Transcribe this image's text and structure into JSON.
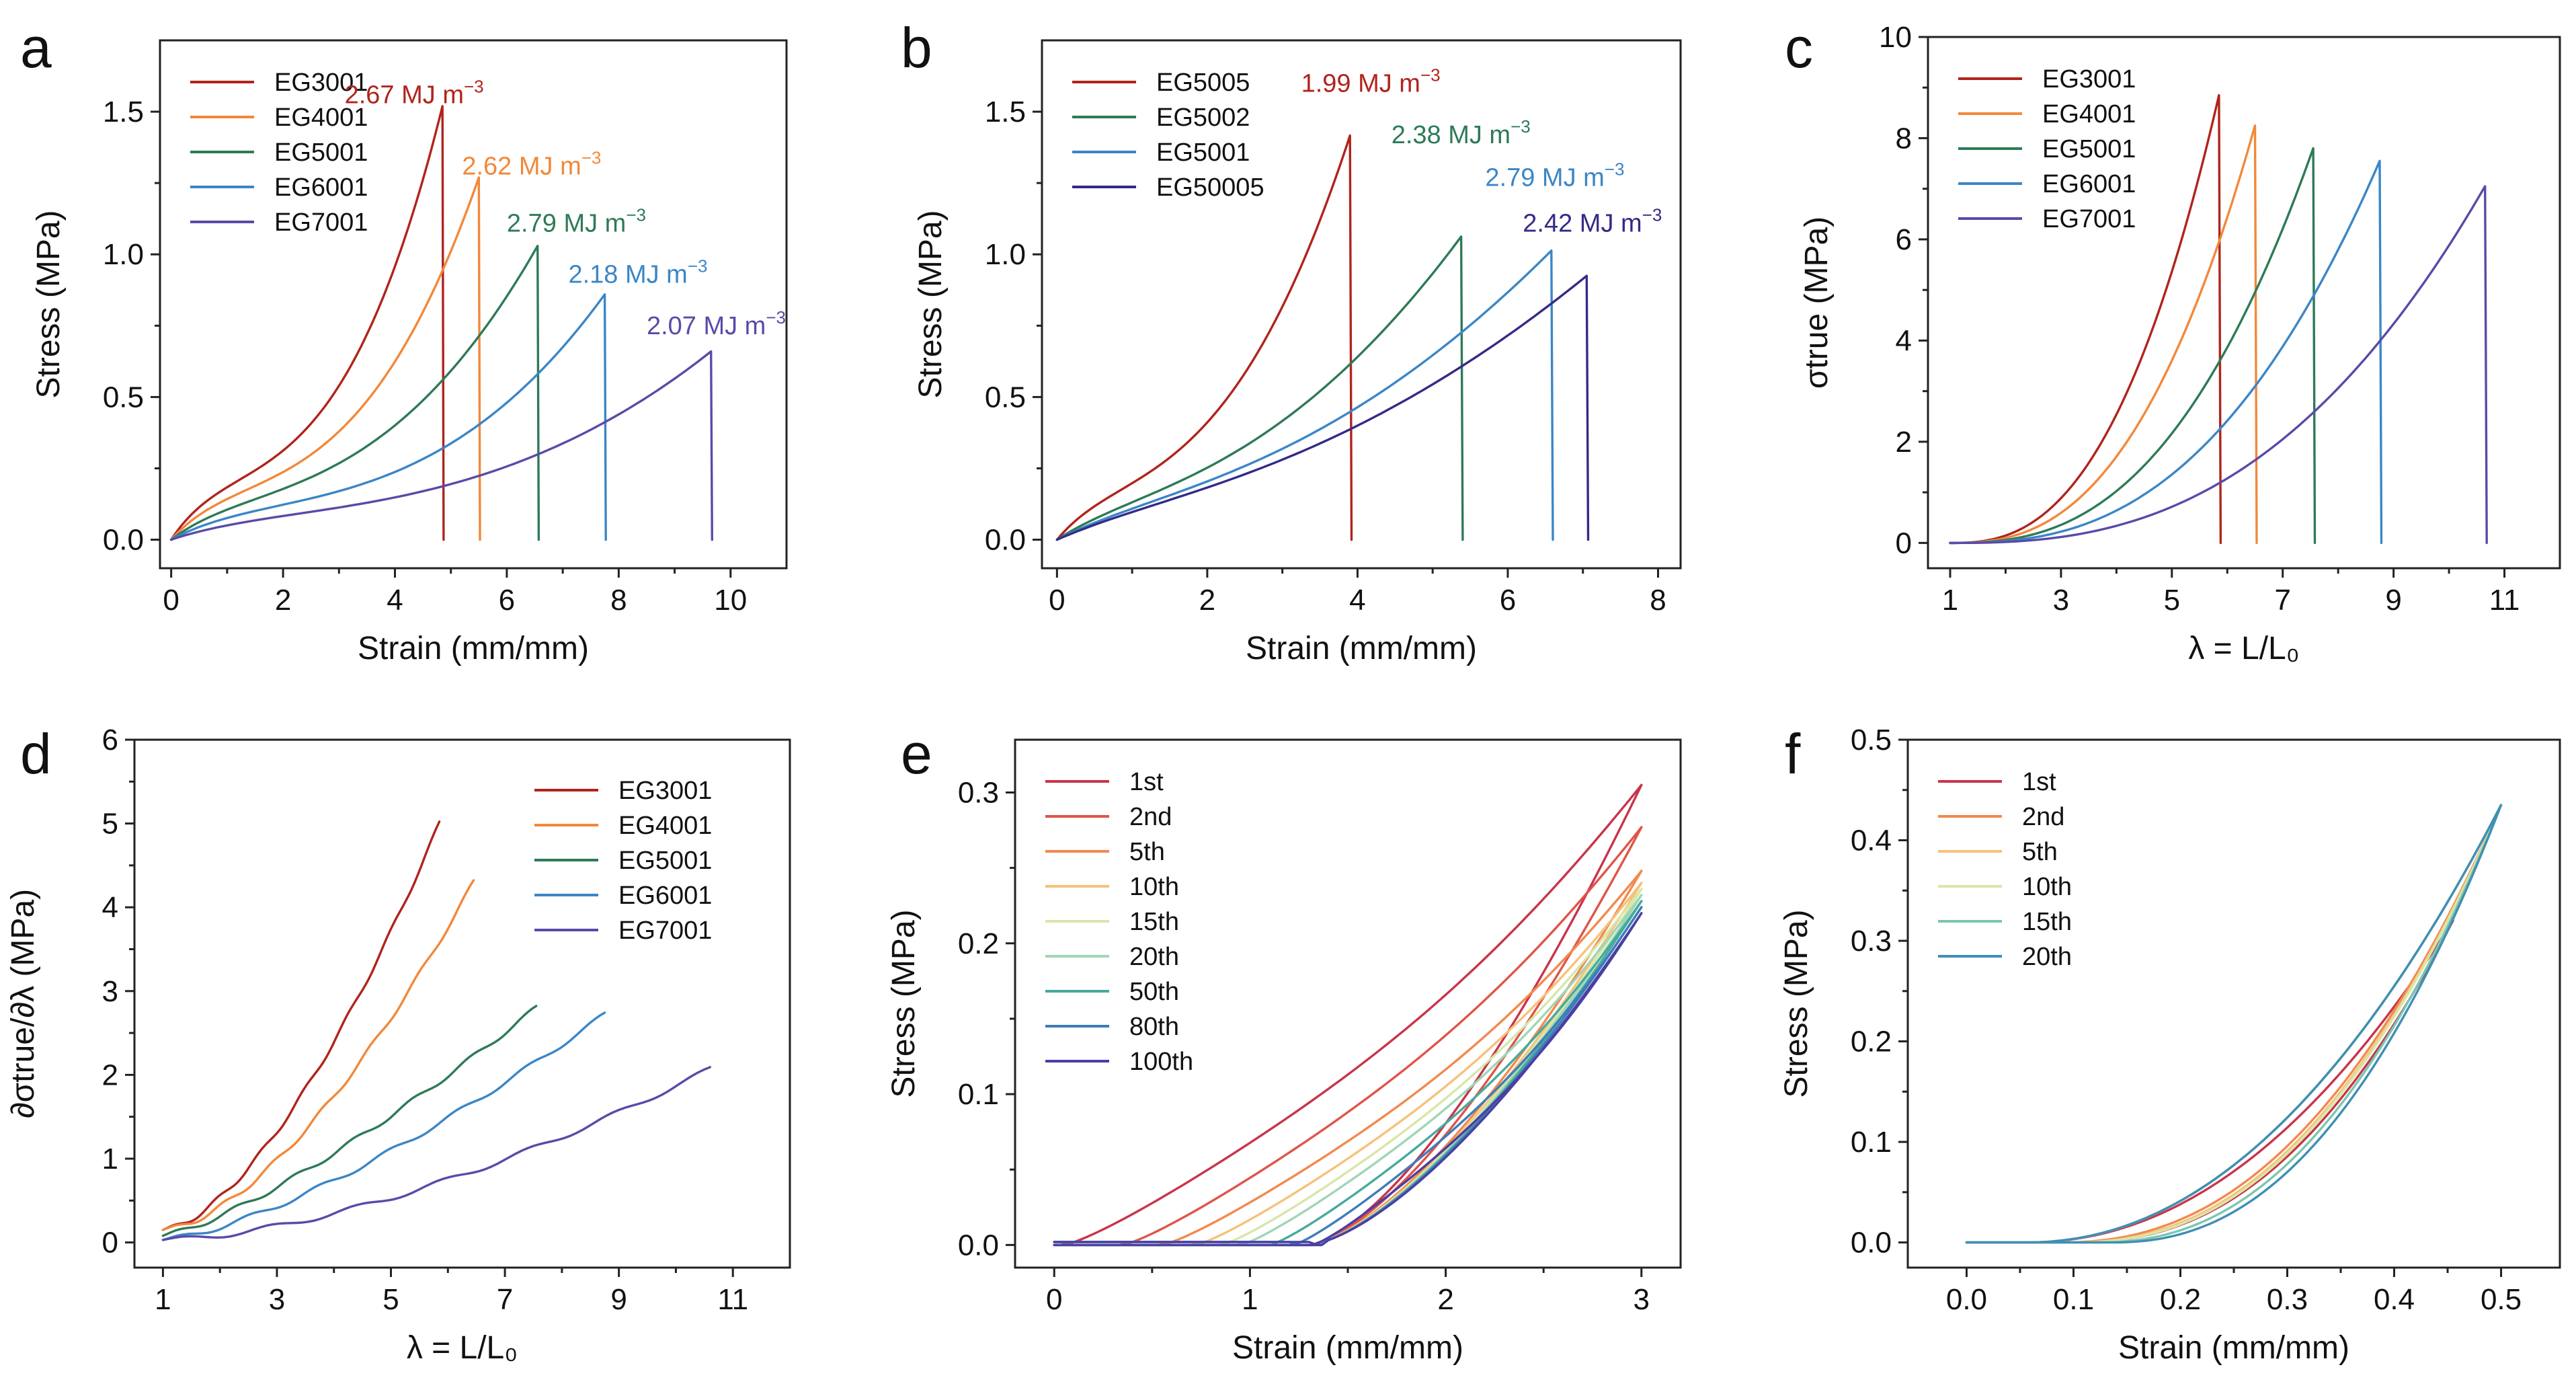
{
  "figure": {
    "panels": [
      "a",
      "b",
      "c",
      "d",
      "e",
      "f"
    ]
  },
  "chart_data": [
    {
      "type": "line",
      "panel": "a",
      "title": "",
      "xlabel": "Strain (mm/mm)",
      "ylabel": "Stress (MPa)",
      "xlim": [
        -0.2,
        11
      ],
      "ylim": [
        -0.1,
        1.75
      ],
      "xticks": [
        0,
        2,
        4,
        6,
        8,
        10
      ],
      "xtick_labels": [
        "0",
        "2",
        "4",
        "6",
        "8",
        "10"
      ],
      "yticks": [
        0.0,
        0.5,
        1.0,
        1.5
      ],
      "ytick_labels": [
        "0.0",
        "0.5",
        "1.0",
        "1.5"
      ],
      "legend_position": "top-left",
      "series": [
        {
          "name": "EG3001",
          "color": "#b0241c",
          "break_x": 4.85,
          "peak": 1.52,
          "k": 2.6,
          "annotation": "2.67 MJ m",
          "sup": "−3",
          "annot_at": [
            3.1,
            1.53
          ]
        },
        {
          "name": "EG4001",
          "color": "#f2883a",
          "break_x": 5.5,
          "peak": 1.27,
          "k": 2.5,
          "annotation": "2.62 MJ m",
          "sup": "−3",
          "annot_at": [
            5.2,
            1.28
          ]
        },
        {
          "name": "EG5001",
          "color": "#2e7a57",
          "break_x": 6.55,
          "peak": 1.03,
          "k": 2.2,
          "annotation": "2.79 MJ m",
          "sup": "−3",
          "annot_at": [
            6.0,
            1.08
          ]
        },
        {
          "name": "EG6001",
          "color": "#3b86c6",
          "break_x": 7.75,
          "peak": 0.86,
          "k": 2.5,
          "annotation": "2.18 MJ m",
          "sup": "−3",
          "annot_at": [
            7.1,
            0.9
          ]
        },
        {
          "name": "EG7001",
          "color": "#5a4aa8",
          "break_x": 9.65,
          "peak": 0.66,
          "k": 2.3,
          "annotation": "2.07 MJ m",
          "sup": "−3",
          "annot_at": [
            8.5,
            0.72
          ]
        }
      ]
    },
    {
      "type": "line",
      "panel": "b",
      "title": "",
      "xlabel": "Strain (mm/mm)",
      "ylabel": "Stress (MPa)",
      "xlim": [
        -0.2,
        8.3
      ],
      "ylim": [
        -0.1,
        1.75
      ],
      "xticks": [
        0,
        2,
        4,
        6,
        8
      ],
      "xtick_labels": [
        "0",
        "2",
        "4",
        "6",
        "8"
      ],
      "yticks": [
        0.0,
        0.5,
        1.0,
        1.5
      ],
      "ytick_labels": [
        "0.0",
        "0.5",
        "1.0",
        "1.5"
      ],
      "legend_position": "top-left",
      "series": [
        {
          "name": "EG5005",
          "color": "#b0241c",
          "break_x": 3.9,
          "peak": 1.44,
          "k": 2.2,
          "annotation": "1.99 MJ m",
          "sup": "−3",
          "annot_at": [
            3.25,
            1.57
          ]
        },
        {
          "name": "EG5002",
          "color": "#2e7a57",
          "break_x": 5.38,
          "peak": 1.08,
          "k": 1.7,
          "annotation": "2.38 MJ m",
          "sup": "−3",
          "annot_at": [
            4.45,
            1.39
          ]
        },
        {
          "name": "EG5001",
          "color": "#3b86c6",
          "break_x": 6.58,
          "peak": 1.03,
          "k": 1.6,
          "annotation": "2.79 MJ m",
          "sup": "−3",
          "annot_at": [
            5.7,
            1.24
          ]
        },
        {
          "name": "EG50005",
          "color": "#332b86",
          "break_x": 7.05,
          "peak": 0.94,
          "k": 1.5,
          "annotation": "2.42 MJ m",
          "sup": "−3",
          "annot_at": [
            6.2,
            1.08
          ]
        }
      ]
    },
    {
      "type": "line",
      "panel": "c",
      "title": "",
      "xlabel": "λ = L/L₀",
      "ylabel": "σtrue (MPa)",
      "xlim": [
        0.6,
        12.0
      ],
      "ylim": [
        -0.5,
        10
      ],
      "xticks": [
        1,
        3,
        5,
        7,
        9,
        11
      ],
      "xtick_labels": [
        "1",
        "3",
        "5",
        "7",
        "9",
        "11"
      ],
      "yticks": [
        0,
        2,
        4,
        6,
        8,
        10
      ],
      "ytick_labels": [
        "0",
        "2",
        "4",
        "6",
        "8",
        "10"
      ],
      "legend_position": "top-left",
      "series": [
        {
          "name": "EG3001",
          "color": "#b0241c",
          "break_x": 5.85,
          "peak": 8.85,
          "k": 2.6
        },
        {
          "name": "EG4001",
          "color": "#f2883a",
          "break_x": 6.5,
          "peak": 8.25,
          "k": 2.6
        },
        {
          "name": "EG5001",
          "color": "#2e7a57",
          "break_x": 7.55,
          "peak": 7.8,
          "k": 2.6
        },
        {
          "name": "EG6001",
          "color": "#3b86c6",
          "break_x": 8.75,
          "peak": 7.55,
          "k": 2.6
        },
        {
          "name": "EG7001",
          "color": "#5a4aa8",
          "break_x": 10.65,
          "peak": 7.05,
          "k": 2.6
        }
      ]
    },
    {
      "type": "line",
      "panel": "d",
      "title": "",
      "xlabel": "λ = L/L₀",
      "ylabel": "∂σtrue/∂λ (MPa)",
      "xlim": [
        0.5,
        12.0
      ],
      "ylim": [
        -0.3,
        6
      ],
      "xticks": [
        1,
        3,
        5,
        7,
        9,
        11
      ],
      "xtick_labels": [
        "1",
        "3",
        "5",
        "7",
        "9",
        "11"
      ],
      "yticks": [
        0,
        1,
        2,
        3,
        4,
        5,
        6
      ],
      "ytick_labels": [
        "0",
        "1",
        "2",
        "3",
        "4",
        "5",
        "6"
      ],
      "legend_position": "top-right",
      "series": [
        {
          "name": "EG3001",
          "color": "#b0241c",
          "end_x": 5.85,
          "end_y": 5.0,
          "start_y": 0.15,
          "k": 1.6
        },
        {
          "name": "EG4001",
          "color": "#f2883a",
          "end_x": 6.45,
          "end_y": 4.3,
          "start_y": 0.15,
          "k": 1.6
        },
        {
          "name": "EG5001",
          "color": "#2e7a57",
          "end_x": 7.55,
          "end_y": 2.8,
          "start_y": 0.08,
          "k": 1.3
        },
        {
          "name": "EG6001",
          "color": "#3b86c6",
          "end_x": 8.75,
          "end_y": 2.72,
          "start_y": 0.03,
          "k": 1.4
        },
        {
          "name": "EG7001",
          "color": "#5a4aa8",
          "end_x": 10.6,
          "end_y": 2.07,
          "start_y": 0.03,
          "k": 1.6
        }
      ]
    },
    {
      "type": "line",
      "panel": "e",
      "title": "",
      "xlabel": "Strain (mm/mm)",
      "ylabel": "Stress (MPa)",
      "xlim": [
        -0.2,
        3.2
      ],
      "ylim": [
        -0.015,
        0.335
      ],
      "xticks": [
        0,
        1,
        2,
        3
      ],
      "xtick_labels": [
        "0",
        "1",
        "2",
        "3"
      ],
      "yticks": [
        0.0,
        0.1,
        0.2,
        0.3
      ],
      "ytick_labels": [
        "0.0",
        "0.1",
        "0.2",
        "0.3"
      ],
      "legend_position": "top-left",
      "series": [
        {
          "name": "1st",
          "color": "#c8344a",
          "peak": 0.305,
          "onset": 0.05
        },
        {
          "name": "2nd",
          "color": "#e0544a",
          "peak": 0.277,
          "onset": 0.35
        },
        {
          "name": "5th",
          "color": "#f2894e",
          "peak": 0.248,
          "onset": 0.55
        },
        {
          "name": "10th",
          "color": "#f6c27a",
          "peak": 0.24,
          "onset": 0.72
        },
        {
          "name": "15th",
          "color": "#d7e7a8",
          "peak": 0.236,
          "onset": 0.85
        },
        {
          "name": "20th",
          "color": "#9fd6b4",
          "peak": 0.232,
          "onset": 0.95
        },
        {
          "name": "50th",
          "color": "#47aa9e",
          "peak": 0.228,
          "onset": 1.1
        },
        {
          "name": "80th",
          "color": "#3d7db9",
          "peak": 0.224,
          "onset": 1.22
        },
        {
          "name": "100th",
          "color": "#4b3fa3",
          "peak": 0.22,
          "onset": 1.32
        }
      ]
    },
    {
      "type": "line",
      "panel": "f",
      "title": "",
      "xlabel": "Strain (mm/mm)",
      "ylabel": "Stress (MPa)",
      "xlim": [
        -0.055,
        0.555
      ],
      "ylim": [
        -0.025,
        0.5
      ],
      "xticks": [
        0.0,
        0.1,
        0.2,
        0.3,
        0.4,
        0.5
      ],
      "xtick_labels": [
        "0.0",
        "0.1",
        "0.2",
        "0.3",
        "0.4",
        "0.5"
      ],
      "yticks": [
        0.0,
        0.1,
        0.2,
        0.3,
        0.4,
        0.5
      ],
      "ytick_labels": [
        "0.0",
        "0.1",
        "0.2",
        "0.3",
        "0.4",
        "0.5"
      ],
      "legend_position": "top-left",
      "series": [
        {
          "name": "1st",
          "color": "#c8344a",
          "onset": 0.055
        },
        {
          "name": "2nd",
          "color": "#f2894e",
          "onset": 0.085
        },
        {
          "name": "5th",
          "color": "#f6c27a",
          "onset": 0.095
        },
        {
          "name": "10th",
          "color": "#d7e7a8",
          "onset": 0.1
        },
        {
          "name": "15th",
          "color": "#7cc6b0",
          "onset": 0.12
        },
        {
          "name": "20th",
          "color": "#3f8fb5",
          "onset": 0.135
        }
      ]
    }
  ]
}
